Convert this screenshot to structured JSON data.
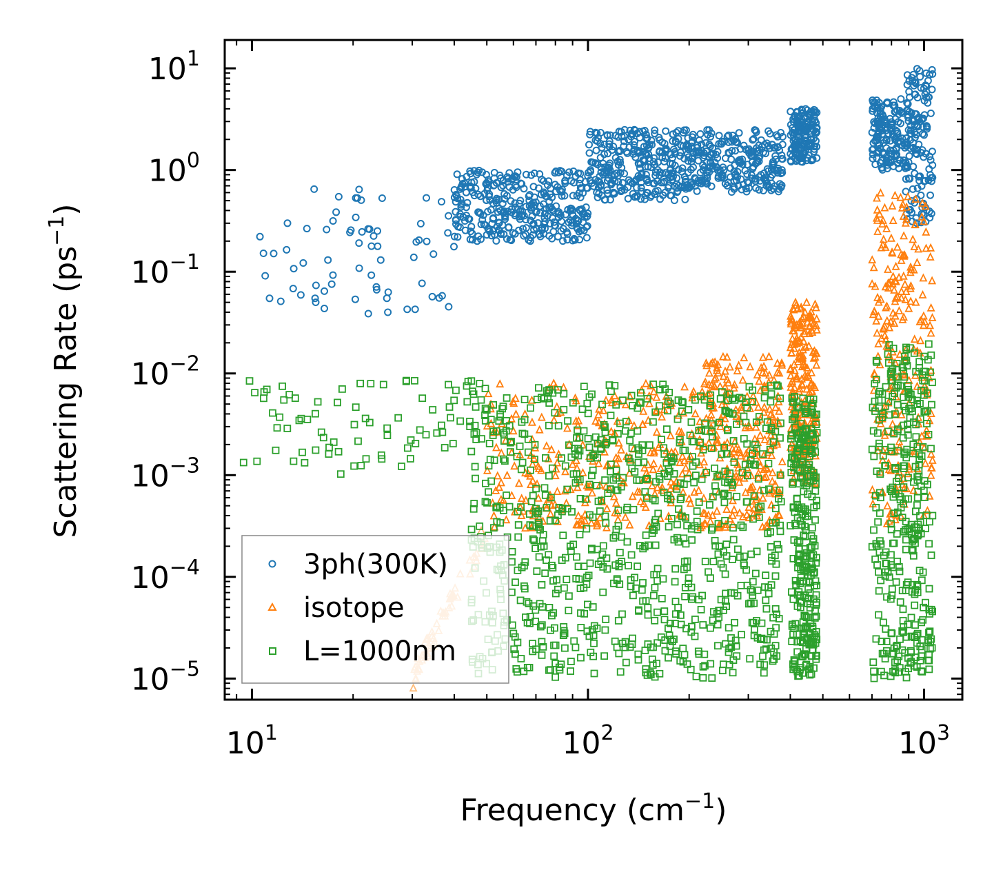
{
  "chart_data": {
    "type": "scatter",
    "title": "",
    "xscale": "log",
    "yscale": "log",
    "xlim": [
      8.3,
      1300
    ],
    "ylim": [
      6.2e-06,
      19
    ],
    "xlabel": {
      "text": "Frequency (cm",
      "sup": "−1",
      "suffix": ")"
    },
    "ylabel": {
      "text": "Scattering Rate (ps",
      "sup": "−1",
      "suffix": ")"
    },
    "x_ticks": [
      {
        "value": 10,
        "base": "10",
        "exp": "1"
      },
      {
        "value": 100,
        "base": "10",
        "exp": "2"
      },
      {
        "value": 1000,
        "base": "10",
        "exp": "3"
      }
    ],
    "y_ticks": [
      {
        "value": 10,
        "base": "10",
        "exp": "1"
      },
      {
        "value": 1,
        "base": "10",
        "exp": "0"
      },
      {
        "value": 0.1,
        "base": "10",
        "exp": "−1"
      },
      {
        "value": 0.01,
        "base": "10",
        "exp": "−2"
      },
      {
        "value": 0.001,
        "base": "10",
        "exp": "−3"
      },
      {
        "value": 0.0001,
        "base": "10",
        "exp": "−4"
      },
      {
        "value": 1e-05,
        "base": "10",
        "exp": "−5"
      }
    ],
    "legend_position": "lower-left",
    "series": [
      {
        "name": "3ph(300K)",
        "marker": "circle",
        "color": "#1f77b4",
        "bands": [
          {
            "x": [
              9.4,
              40
            ],
            "y": [
              0.038,
              0.7
            ],
            "count": 70
          },
          {
            "x": [
              40,
              100
            ],
            "y": [
              0.2,
              1.0
            ],
            "count": 350
          },
          {
            "x": [
              100,
              200
            ],
            "y": [
              0.5,
              2.5
            ],
            "count": 300
          },
          {
            "x": [
              200,
              380
            ],
            "y": [
              0.6,
              2.5
            ],
            "count": 250
          },
          {
            "x": [
              400,
              480
            ],
            "y": [
              1.2,
              4.0
            ],
            "count": 160
          },
          {
            "x": [
              700,
              900
            ],
            "y": [
              1.0,
              5.0
            ],
            "count": 160
          },
          {
            "x": [
              880,
              1060
            ],
            "y": [
              0.3,
              10
            ],
            "count": 140
          }
        ]
      },
      {
        "name": "isotope",
        "marker": "triangle",
        "color": "#ff7f0e",
        "light_color": "#ffbb78",
        "bands": [
          {
            "x": [
              30,
              50
            ],
            "y": [
              1e-05,
              0.0003
            ],
            "count": 60,
            "style": "trend"
          },
          {
            "x": [
              50,
              220
            ],
            "y": [
              0.0003,
              0.008
            ],
            "count": 300
          },
          {
            "x": [
              220,
              380
            ],
            "y": [
              0.0003,
              0.015
            ],
            "count": 250
          },
          {
            "x": [
              400,
              480
            ],
            "y": [
              0.0008,
              0.05
            ],
            "count": 220
          },
          {
            "x": [
              700,
              1060
            ],
            "y": [
              0.0003,
              0.6
            ],
            "count": 250
          }
        ]
      },
      {
        "name": "L=1000nm",
        "marker": "square",
        "color": "#2ca02c",
        "bands": [
          {
            "x": [
              9.4,
              45
            ],
            "y": [
              0.001,
              0.009
            ],
            "count": 80
          },
          {
            "x": [
              45,
              380
            ],
            "y": [
              1e-05,
              0.008
            ],
            "count": 900
          },
          {
            "x": [
              400,
              480
            ],
            "y": [
              1e-05,
              0.006
            ],
            "count": 300
          },
          {
            "x": [
              700,
              1060
            ],
            "y": [
              1e-05,
              0.02
            ],
            "count": 350
          }
        ]
      }
    ]
  }
}
